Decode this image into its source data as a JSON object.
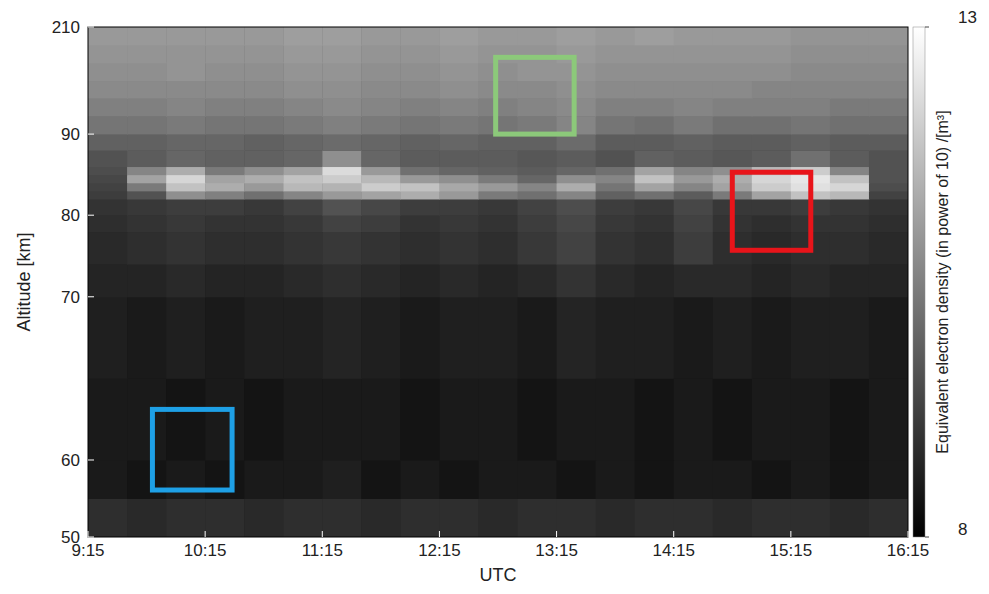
{
  "chart_data": {
    "type": "heatmap",
    "xlabel": "UTC",
    "ylabel": "Altitude [km]",
    "zlabel": "Equivalent electron density (in power of 10) /[m³]",
    "xlim": [
      9.25,
      16.25
    ],
    "xticks": [
      {
        "value": 9.25,
        "label": "9:15"
      },
      {
        "value": 10.25,
        "label": "10:15"
      },
      {
        "value": 11.25,
        "label": "11:15"
      },
      {
        "value": 12.25,
        "label": "12:15"
      },
      {
        "value": 13.25,
        "label": "13:15"
      },
      {
        "value": 14.25,
        "label": "14:15"
      },
      {
        "value": 15.25,
        "label": "15:15"
      },
      {
        "value": 16.25,
        "label": "16:15"
      }
    ],
    "ylim": [
      50,
      210
    ],
    "yticks": [
      50,
      60,
      70,
      80,
      90,
      210
    ],
    "zlim": [
      8,
      13
    ],
    "zticks": [
      8,
      13
    ],
    "x_edges": [
      9.25,
      9.5833,
      9.9167,
      10.25,
      10.5833,
      10.9167,
      11.25,
      11.5833,
      11.9167,
      12.25,
      12.5833,
      12.9167,
      13.25,
      13.5833,
      13.9167,
      14.25,
      14.5833,
      14.9167,
      15.25,
      15.5833,
      15.9167,
      16.25
    ],
    "y_edges": [
      50,
      55,
      60,
      65,
      70,
      74,
      78,
      80,
      82,
      83,
      84,
      85,
      86,
      88,
      90,
      110,
      130,
      150,
      170,
      190,
      210
    ],
    "z": [
      [
        8.9,
        8.8,
        8.9,
        8.9,
        8.8,
        8.9,
        8.9,
        8.8,
        8.9,
        8.9,
        8.8,
        8.9,
        8.9,
        8.8,
        8.9,
        8.9,
        8.8,
        8.9,
        8.9,
        8.8,
        8.9
      ],
      [
        8.5,
        8.4,
        8.5,
        8.4,
        8.5,
        8.5,
        8.6,
        8.4,
        8.5,
        8.4,
        8.5,
        8.5,
        8.4,
        8.5,
        8.4,
        8.5,
        8.5,
        8.4,
        8.5,
        8.4,
        8.5
      ],
      [
        8.5,
        8.5,
        8.4,
        8.5,
        8.4,
        8.5,
        8.5,
        8.5,
        8.4,
        8.5,
        8.5,
        8.4,
        8.5,
        8.5,
        8.4,
        8.5,
        8.4,
        8.5,
        8.5,
        8.4,
        8.5
      ],
      [
        8.6,
        8.5,
        8.6,
        8.5,
        8.6,
        8.6,
        8.7,
        8.6,
        8.5,
        8.6,
        8.6,
        8.5,
        8.7,
        8.6,
        8.6,
        8.5,
        8.6,
        8.5,
        8.6,
        8.6,
        8.5
      ],
      [
        8.7,
        8.7,
        8.8,
        8.7,
        8.7,
        8.8,
        8.9,
        8.8,
        8.7,
        8.8,
        8.7,
        8.8,
        9.0,
        8.8,
        8.7,
        8.8,
        8.8,
        8.7,
        8.8,
        8.7,
        8.7
      ],
      [
        8.8,
        8.9,
        9.0,
        8.9,
        8.9,
        9.0,
        9.1,
        9.0,
        8.9,
        9.0,
        8.9,
        9.1,
        9.3,
        9.0,
        8.9,
        9.2,
        8.9,
        8.8,
        8.9,
        8.9,
        8.8
      ],
      [
        8.9,
        9.0,
        9.1,
        9.0,
        9.0,
        9.1,
        9.3,
        9.2,
        9.0,
        9.1,
        9.0,
        9.2,
        9.4,
        9.1,
        9.0,
        9.3,
        9.0,
        8.9,
        9.0,
        9.0,
        8.9
      ],
      [
        9.0,
        9.1,
        9.2,
        9.2,
        9.1,
        9.3,
        9.6,
        9.4,
        9.2,
        9.2,
        9.1,
        9.3,
        9.5,
        9.2,
        9.1,
        9.4,
        9.1,
        9.1,
        9.2,
        9.1,
        9.0
      ],
      [
        9.2,
        9.6,
        10.8,
        10.5,
        10.2,
        10.6,
        11.0,
        11.2,
        11.4,
        11.0,
        10.4,
        10.2,
        10.6,
        9.9,
        10.2,
        9.8,
        10.4,
        11.2,
        11.8,
        11.6,
        9.3
      ],
      [
        9.3,
        10.4,
        11.8,
        11.4,
        11.0,
        11.6,
        11.5,
        12.0,
        11.8,
        11.3,
        11.0,
        10.6,
        11.4,
        10.3,
        11.2,
        10.6,
        11.2,
        12.0,
        12.4,
        12.2,
        9.5
      ],
      [
        9.4,
        11.2,
        12.2,
        11.2,
        11.4,
        11.8,
        12.0,
        11.6,
        11.0,
        10.8,
        10.4,
        10.0,
        10.8,
        10.6,
        11.8,
        11.0,
        11.4,
        12.2,
        12.5,
        11.8,
        9.6
      ],
      [
        9.5,
        10.6,
        11.4,
        10.4,
        10.8,
        11.2,
        12.3,
        11.0,
        10.2,
        10.0,
        9.9,
        9.8,
        10.0,
        10.2,
        11.2,
        10.6,
        10.8,
        11.6,
        12.0,
        10.6,
        9.6
      ],
      [
        9.6,
        9.8,
        10.0,
        9.9,
        9.9,
        10.0,
        10.8,
        10.0,
        9.8,
        9.8,
        9.8,
        9.7,
        9.8,
        9.6,
        9.9,
        9.8,
        9.7,
        9.8,
        10.2,
        9.8,
        9.6
      ],
      [
        9.9,
        9.9,
        10.0,
        10.0,
        9.9,
        10.0,
        10.1,
        10.0,
        9.9,
        10.0,
        9.9,
        9.9,
        10.1,
        9.8,
        9.8,
        9.9,
        9.8,
        9.8,
        9.9,
        9.8,
        9.8
      ],
      [
        10.3,
        10.3,
        10.4,
        10.3,
        10.3,
        10.4,
        10.5,
        10.4,
        10.3,
        10.4,
        10.3,
        10.4,
        10.6,
        10.3,
        10.2,
        10.4,
        10.2,
        10.2,
        10.3,
        10.2,
        10.2
      ],
      [
        10.5,
        10.5,
        10.6,
        10.5,
        10.5,
        10.6,
        10.7,
        10.6,
        10.5,
        10.6,
        10.5,
        10.6,
        10.7,
        10.5,
        10.5,
        10.6,
        10.5,
        10.5,
        10.5,
        10.4,
        10.4
      ],
      [
        10.7,
        10.7,
        10.7,
        10.7,
        10.7,
        10.8,
        10.8,
        10.7,
        10.7,
        10.8,
        10.7,
        10.7,
        10.8,
        10.7,
        10.7,
        10.7,
        10.7,
        10.6,
        10.6,
        10.6,
        10.6
      ],
      [
        10.8,
        10.8,
        10.9,
        10.8,
        10.8,
        10.9,
        10.9,
        10.8,
        10.8,
        10.9,
        10.8,
        10.9,
        10.9,
        10.8,
        10.8,
        10.8,
        10.8,
        10.8,
        10.7,
        10.7,
        10.7
      ],
      [
        10.9,
        10.9,
        10.9,
        10.9,
        10.9,
        11.0,
        11.0,
        10.9,
        10.9,
        11.0,
        10.9,
        10.9,
        11.0,
        10.9,
        10.9,
        10.9,
        10.9,
        10.9,
        10.8,
        10.8,
        10.8
      ],
      [
        11.0,
        11.0,
        11.0,
        11.0,
        11.0,
        11.1,
        11.1,
        11.0,
        11.0,
        11.1,
        11.0,
        11.0,
        11.1,
        11.0,
        11.1,
        11.0,
        11.0,
        11.0,
        10.9,
        10.9,
        10.9
      ]
    ],
    "regions": [
      {
        "color": "#1ea0e6",
        "x": [
          9.8,
          10.48
        ],
        "y": [
          56.1,
          63.1
        ]
      },
      {
        "color": "#8cc97a",
        "x": [
          12.73,
          13.4
        ],
        "y": [
          90,
          176
        ]
      },
      {
        "color": "#e8141a",
        "x": [
          14.75,
          15.42
        ],
        "y": [
          75.7,
          85.3
        ]
      }
    ]
  }
}
